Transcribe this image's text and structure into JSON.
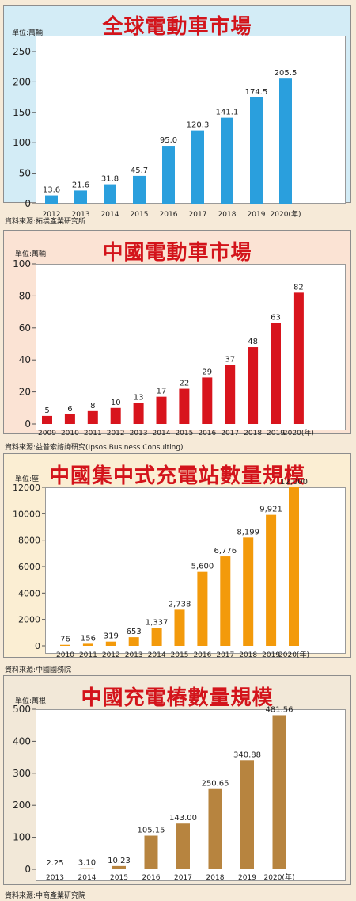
{
  "chart_data": [
    {
      "type": "bar",
      "title": "全球電動車市場",
      "unit_label": "單位:萬輛",
      "source": "資料來源:拓墣產業研究所",
      "categories": [
        "2012",
        "2013",
        "2014",
        "2015",
        "2016",
        "2017",
        "2018",
        "2019",
        "2020(年)"
      ],
      "values": [
        13.6,
        21.6,
        31.8,
        45.7,
        95.0,
        120.3,
        141.1,
        174.5,
        205.5
      ],
      "value_labels": [
        "13.6",
        "21.6",
        "31.8",
        "45.7",
        "95.0",
        "120.3",
        "141.1",
        "174.5",
        "205.5"
      ],
      "ylim": [
        0,
        250
      ],
      "yticks": [
        0,
        50,
        100,
        150,
        200,
        250
      ],
      "ytick_labels": [
        "0",
        "50",
        "100",
        "150",
        "200",
        "250"
      ],
      "bar_color": "#2a9fdd",
      "panel_color": "#d3ecf6"
    },
    {
      "type": "bar",
      "title": "中國電動車市場",
      "unit_label": "單位:萬輛",
      "source": "資料來源:益普索諮詢研究(Ipsos Business Consulting)",
      "categories": [
        "2009",
        "2010",
        "2011",
        "2012",
        "2013",
        "2014",
        "2015",
        "2016",
        "2017",
        "2018",
        "2019",
        "2020(年)"
      ],
      "values": [
        5,
        6,
        8,
        10,
        13,
        17,
        22,
        29,
        37,
        48,
        63,
        82
      ],
      "value_labels": [
        "5",
        "6",
        "8",
        "10",
        "13",
        "17",
        "22",
        "29",
        "37",
        "48",
        "63",
        "82"
      ],
      "ylim": [
        0,
        100
      ],
      "yticks": [
        0,
        20,
        40,
        60,
        80,
        100
      ],
      "ytick_labels": [
        "0",
        "20",
        "40",
        "60",
        "80",
        "100"
      ],
      "bar_color": "#d8141d",
      "panel_color": "#fbe3d4"
    },
    {
      "type": "bar",
      "title": "中國集中式充電站數量規模",
      "unit_label": "單位:座",
      "source": "資料來源:中國國務院",
      "categories": [
        "2010",
        "2011",
        "2012",
        "2013",
        "2014",
        "2015",
        "2016",
        "2017",
        "2018",
        "2019",
        "2020(年)"
      ],
      "values": [
        76,
        156,
        319,
        653,
        1337,
        2738,
        5600,
        6776,
        8199,
        9921,
        12000
      ],
      "value_labels": [
        "76",
        "156",
        "319",
        "653",
        "1,337",
        "2,738",
        "5,600",
        "6,776",
        "8,199",
        "9,921",
        "12,000"
      ],
      "ylim": [
        0,
        12000
      ],
      "yticks": [
        0,
        2000,
        4000,
        6000,
        8000,
        10000,
        12000
      ],
      "ytick_labels": [
        "0",
        "2000",
        "4000",
        "6000",
        "8000",
        "10000",
        "12000"
      ],
      "bar_color": "#f39a0b",
      "panel_color": "#fbeed3"
    },
    {
      "type": "bar",
      "title": "中國充電樁數量規模",
      "unit_label": "單位:萬根",
      "source": "資料來源:中商產業研究院",
      "categories": [
        "2013",
        "2014",
        "2015",
        "2016",
        "2017",
        "2018",
        "2019",
        "2020(年)"
      ],
      "values": [
        2.25,
        3.1,
        10.23,
        105.15,
        143.0,
        250.65,
        340.88,
        481.56
      ],
      "value_labels": [
        "2.25",
        "3.10",
        "10.23",
        "105.15",
        "143.00",
        "250.65",
        "340.88",
        "481.56"
      ],
      "ylim": [
        0,
        500
      ],
      "yticks": [
        0,
        100,
        200,
        300,
        400,
        500
      ],
      "ytick_labels": [
        "0",
        "100",
        "200",
        "300",
        "400",
        "500"
      ],
      "bar_color": "#b7843f",
      "panel_color": "#f2e8d8"
    }
  ]
}
